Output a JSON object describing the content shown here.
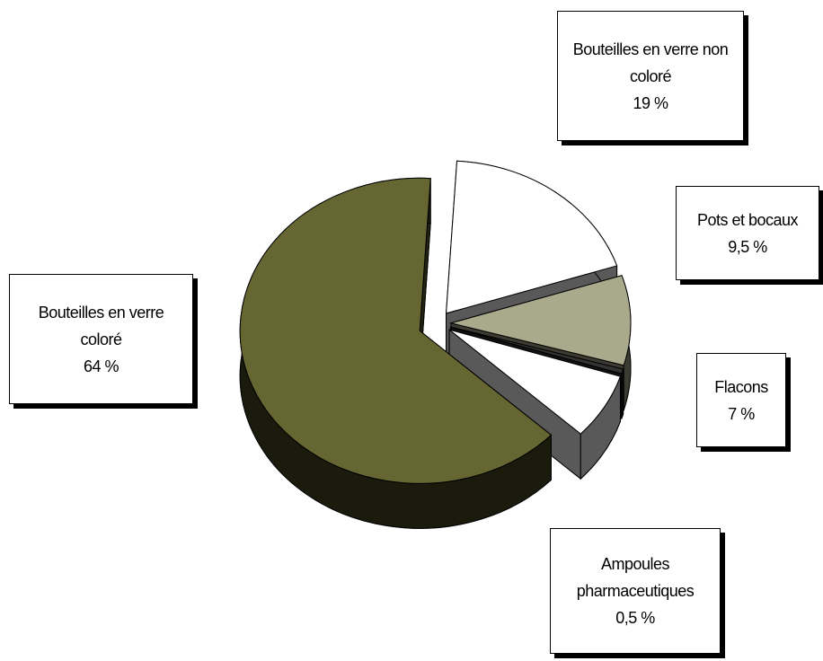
{
  "chart_data": {
    "type": "pie",
    "categories": [
      "Bouteilles en verre non coloré",
      "Pots et bocaux",
      "Ampoules pharmaceutiques",
      "Flacons",
      "Bouteilles en verre coloré"
    ],
    "values": [
      19,
      9.5,
      0.5,
      7,
      64
    ],
    "value_labels": [
      "19 %",
      "9,5 %",
      "0,5 %",
      "7 %",
      "64 %"
    ],
    "colors": [
      "#ffffff",
      "#a9a98c",
      "#333333",
      "#ffffff",
      "#666633"
    ]
  }
}
